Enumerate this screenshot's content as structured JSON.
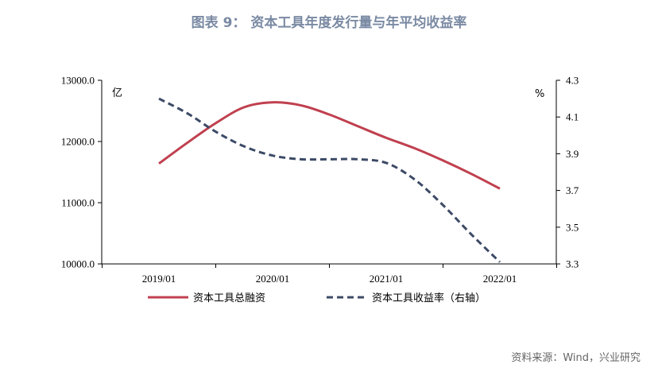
{
  "title": "图表 9： 资本工具年度发行量与年平均收益率",
  "source": "资料来源：Wind，兴业研究",
  "chart_data": {
    "type": "line",
    "categories": [
      "2019/01",
      "2020/01",
      "2021/01",
      "2022/01"
    ],
    "left_axis": {
      "unit": "亿",
      "ylim": [
        10000,
        13000
      ],
      "ticks": [
        "13000.0",
        "12000.0",
        "11000.0",
        "10000.0"
      ],
      "tick_values": [
        13000,
        12000,
        11000,
        10000
      ]
    },
    "right_axis": {
      "unit": "%",
      "ylim": [
        3.3,
        4.3
      ],
      "ticks": [
        "4.3",
        "4.1",
        "3.9",
        "3.7",
        "3.5",
        "3.3"
      ],
      "tick_values": [
        4.3,
        4.1,
        3.9,
        3.7,
        3.5,
        3.3
      ]
    },
    "series": [
      {
        "name": "资本工具总融资",
        "axis": "left",
        "color": "#c0404f",
        "style": "solid",
        "x": [
          0,
          0.25,
          0.5,
          0.75,
          1,
          1.25,
          1.5,
          1.75,
          2,
          2.25,
          2.5,
          2.75,
          3
        ],
        "values": [
          11640,
          11980,
          12300,
          12560,
          12640,
          12590,
          12440,
          12250,
          12060,
          11890,
          11690,
          11470,
          11230
        ]
      },
      {
        "name": "资本工具收益率（右轴）",
        "axis": "right",
        "color": "#3c4a66",
        "style": "dashed",
        "x": [
          0,
          0.25,
          0.5,
          0.75,
          1,
          1.25,
          1.5,
          1.75,
          2,
          2.25,
          2.5,
          2.75,
          3
        ],
        "values": [
          4.2,
          4.12,
          4.02,
          3.94,
          3.89,
          3.87,
          3.87,
          3.87,
          3.85,
          3.76,
          3.62,
          3.46,
          3.31
        ]
      }
    ],
    "grid": false,
    "legend_position": "bottom"
  }
}
